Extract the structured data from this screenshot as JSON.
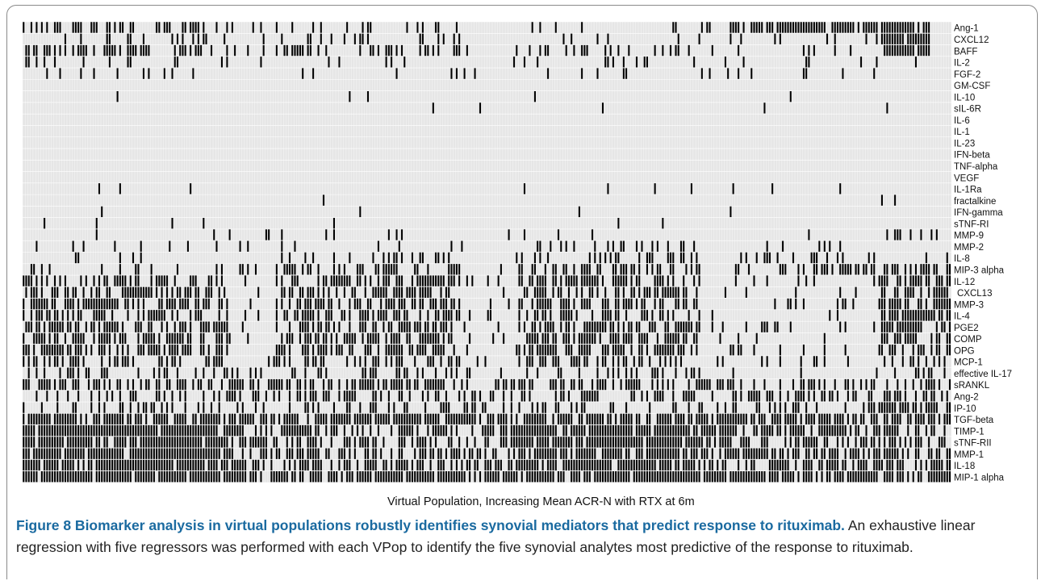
{
  "chart_data": {
    "type": "heatmap",
    "title": "",
    "xlabel": "Virtual Population, Increasing Mean ACR-N with RTX at 6m",
    "ylabel": "",
    "x_count": 356,
    "grid": true,
    "colors": {
      "present": "#000000",
      "absent": "#e6e6e6",
      "grid": "#ffffff"
    },
    "rows": [
      {
        "label": "Ang-1",
        "density": 0.08,
        "groups": [
          0.4,
          0.2,
          0.1,
          0.8,
          0.05
        ],
        "dense_range": [
          0.923,
          0.975
        ]
      },
      {
        "label": "CXCL12",
        "density": 0.05,
        "groups": [
          0.2,
          0.2,
          0.1,
          0.1,
          0.1
        ],
        "dense_range": [
          0.923,
          0.975
        ]
      },
      {
        "label": "BAFF",
        "density": 0.1,
        "groups": [
          0.5,
          0.4,
          0.3,
          0.2,
          0.05
        ],
        "dense_range": [
          0.923,
          0.975
        ]
      },
      {
        "label": "IL-2",
        "density": 0.06,
        "groups": [
          0.15,
          0.1,
          0.1,
          0.1,
          0.05
        ]
      },
      {
        "label": "FGF-2",
        "density": 0.03,
        "groups": [
          0.1,
          0.1,
          0.05,
          0.1,
          0.0
        ]
      },
      {
        "label": "GM-CSF",
        "density": 0.0,
        "groups": [
          0,
          0,
          0,
          0,
          0
        ]
      },
      {
        "label": "IL-10",
        "density": 0.01,
        "groups": [
          0,
          0.03,
          0,
          0,
          0
        ]
      },
      {
        "label": "sIL-6R",
        "density": 0.005,
        "groups": [
          0,
          0.02,
          0,
          0,
          0
        ]
      },
      {
        "label": "IL-6",
        "density": 0.0,
        "groups": [
          0,
          0,
          0,
          0,
          0
        ]
      },
      {
        "label": "IL-1",
        "density": 0.0,
        "groups": [
          0,
          0,
          0,
          0,
          0
        ]
      },
      {
        "label": "IL-23",
        "density": 0.0,
        "groups": [
          0,
          0,
          0,
          0,
          0
        ]
      },
      {
        "label": "IFN-beta",
        "density": 0.0,
        "groups": [
          0,
          0,
          0,
          0,
          0
        ]
      },
      {
        "label": "TNF-alpha",
        "density": 0.0,
        "groups": [
          0,
          0,
          0,
          0,
          0
        ]
      },
      {
        "label": "VEGF",
        "density": 0.0,
        "groups": [
          0,
          0,
          0,
          0,
          0
        ]
      },
      {
        "label": "IL-1Ra",
        "density": 0.02,
        "groups": [
          0.06,
          0,
          0,
          0,
          0
        ]
      },
      {
        "label": "fractalkine",
        "density": 0.01,
        "groups": [
          0.02,
          0,
          0,
          0,
          0
        ]
      },
      {
        "label": "IFN-gamma",
        "density": 0.01,
        "groups": [
          0,
          0.02,
          0,
          0.02,
          0.02
        ]
      },
      {
        "label": "sTNF-RI",
        "density": 0.01,
        "groups": [
          0.02,
          0,
          0.02,
          0,
          0.02
        ]
      },
      {
        "label": "MMP-9",
        "density": 0.03,
        "groups": [
          0.02,
          0.02,
          0.02,
          0.02,
          0.3
        ]
      },
      {
        "label": "MMP-2",
        "density": 0.04,
        "groups": [
          0.03,
          0.15,
          0.15,
          0.15,
          0.05
        ]
      },
      {
        "label": "IL-8",
        "density": 0.06,
        "groups": [
          0.1,
          0.25,
          0.25,
          0.25,
          0.05
        ]
      },
      {
        "label": "MIP-3 alpha",
        "density": 0.1,
        "groups": [
          0.2,
          0.45,
          0.45,
          0.45,
          0.45
        ]
      },
      {
        "label": "IL-12",
        "density": 0.1,
        "groups": [
          0.55,
          0.55,
          0.55,
          0.1,
          0.6
        ]
      },
      {
        "label": "CXCL13",
        "density": 0.1,
        "groups": [
          0.55,
          0.55,
          0.55,
          0.1,
          0.6
        ]
      },
      {
        "label": "MMP-3",
        "density": 0.1,
        "groups": [
          0.6,
          0.55,
          0.55,
          0.1,
          0.65
        ]
      },
      {
        "label": "IL-4",
        "density": 0.1,
        "groups": [
          0.55,
          0.55,
          0.5,
          0.1,
          0.7
        ]
      },
      {
        "label": "PGE2",
        "density": 0.1,
        "groups": [
          0.6,
          0.55,
          0.55,
          0.1,
          0.7
        ]
      },
      {
        "label": "COMP",
        "density": 0.1,
        "groups": [
          0.6,
          0.6,
          0.55,
          0.1,
          0.7
        ]
      },
      {
        "label": "OPG",
        "density": 0.12,
        "groups": [
          0.65,
          0.6,
          0.6,
          0.1,
          0.6
        ]
      },
      {
        "label": "MCP-1",
        "density": 0.12,
        "groups": [
          0.45,
          0.45,
          0.45,
          0.1,
          0.4
        ]
      },
      {
        "label": "effective IL-17",
        "density": 0.1,
        "groups": [
          0.35,
          0.3,
          0.3,
          0.1,
          0.2
        ]
      },
      {
        "label": "sRANKL",
        "density": 0.45,
        "groups": [
          0.55,
          0.5,
          0.5,
          0.45,
          0.1
        ]
      },
      {
        "label": "Ang-2",
        "density": 0.35,
        "groups": [
          0.35,
          0.35,
          0.35,
          0.35,
          0.55
        ]
      },
      {
        "label": "IP-10",
        "density": 0.3,
        "groups": [
          0.3,
          0.3,
          0.3,
          0.3,
          0.85
        ]
      },
      {
        "label": "TGF-beta",
        "density": 0.75,
        "groups": [
          0.8,
          0.75,
          0.75,
          0.7,
          0.5
        ]
      },
      {
        "label": "TIMP-1",
        "density": 0.55,
        "groups": [
          0.9,
          0.5,
          0.9,
          0.5,
          0.2
        ]
      },
      {
        "label": "sTNF-RII",
        "density": 0.55,
        "groups": [
          0.9,
          0.5,
          0.9,
          0.5,
          0.2
        ]
      },
      {
        "label": "MMP-1",
        "density": 0.55,
        "groups": [
          0.85,
          0.55,
          0.85,
          0.55,
          0.2
        ]
      },
      {
        "label": "IL-18",
        "density": 0.55,
        "groups": [
          0.85,
          0.5,
          0.85,
          0.5,
          0.75
        ]
      },
      {
        "label": "MIP-1 alpha",
        "density": 0.8,
        "groups": [
          0.9,
          0.85,
          0.9,
          0.85,
          0.6
        ]
      }
    ]
  },
  "caption": {
    "bold": "Figure 8 Biomarker analysis in virtual populations robustly identifies synovial mediators that predict response to rituximab.",
    "text": " An exhaustive linear regression with five regressors was performed with each VPop to identify the five synovial analytes most predictive of the response to rituximab."
  }
}
